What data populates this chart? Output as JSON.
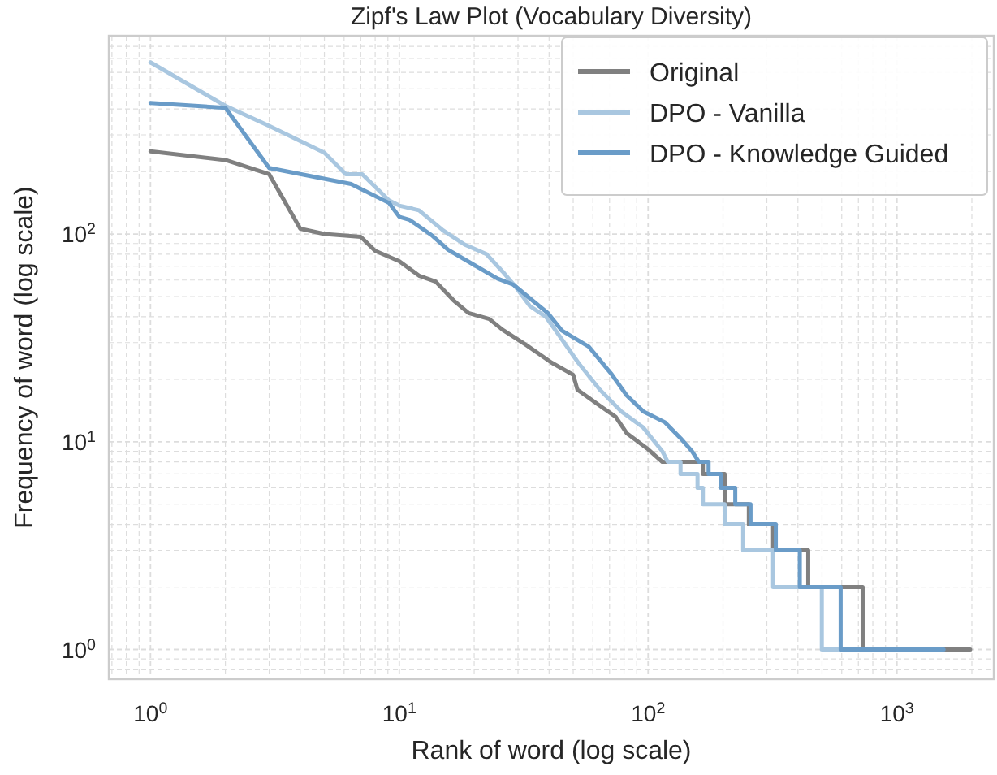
{
  "chart_data": {
    "type": "line",
    "title": "Zipf's Law Plot (Vocabulary Diversity)",
    "xlabel": "Rank of word (log scale)",
    "ylabel": "Frequency of word (log scale)",
    "log": "xy",
    "grid": true,
    "legend": "top right",
    "marker": "none",
    "line_style": "solid",
    "xlim": [
      0.68,
      2450
    ],
    "ylim": [
      0.72,
      900
    ],
    "xticks": [
      {
        "value": 0.7,
        "label": null
      },
      {
        "value": 0.8,
        "label": null
      },
      {
        "value": 0.9,
        "label": null
      },
      {
        "value": 1,
        "label": "10$^{0}$"
      },
      {
        "value": 2,
        "label": null
      },
      {
        "value": 3,
        "label": null
      },
      {
        "value": 4,
        "label": null
      },
      {
        "value": 5,
        "label": null
      },
      {
        "value": 6,
        "label": null
      },
      {
        "value": 7,
        "label": null
      },
      {
        "value": 8,
        "label": null
      },
      {
        "value": 9,
        "label": null
      },
      {
        "value": 10,
        "label": "10$^{1}$"
      },
      {
        "value": 20,
        "label": null
      },
      {
        "value": 30,
        "label": null
      },
      {
        "value": 40,
        "label": null
      },
      {
        "value": 50,
        "label": null
      },
      {
        "value": 60,
        "label": null
      },
      {
        "value": 70,
        "label": null
      },
      {
        "value": 80,
        "label": null
      },
      {
        "value": 90,
        "label": null
      },
      {
        "value": 100,
        "label": "10$^{2}$"
      },
      {
        "value": 200,
        "label": null
      },
      {
        "value": 300,
        "label": null
      },
      {
        "value": 400,
        "label": null
      },
      {
        "value": 500,
        "label": null
      },
      {
        "value": 600,
        "label": null
      },
      {
        "value": 700,
        "label": null
      },
      {
        "value": 800,
        "label": null
      },
      {
        "value": 900,
        "label": null
      },
      {
        "value": 1000,
        "label": "10$^{3}$"
      },
      {
        "value": 2000,
        "label": null
      }
    ],
    "yticks": [
      {
        "value": 0.8,
        "label": null
      },
      {
        "value": 0.9,
        "label": null
      },
      {
        "value": 1,
        "label": "10$^{0}$"
      },
      {
        "value": 2,
        "label": null
      },
      {
        "value": 3,
        "label": null
      },
      {
        "value": 4,
        "label": null
      },
      {
        "value": 5,
        "label": null
      },
      {
        "value": 6,
        "label": null
      },
      {
        "value": 7,
        "label": null
      },
      {
        "value": 8,
        "label": null
      },
      {
        "value": 9,
        "label": null
      },
      {
        "value": 10,
        "label": "10$^{1}$"
      },
      {
        "value": 20,
        "label": null
      },
      {
        "value": 30,
        "label": null
      },
      {
        "value": 40,
        "label": null
      },
      {
        "value": 50,
        "label": null
      },
      {
        "value": 60,
        "label": null
      },
      {
        "value": 70,
        "label": null
      },
      {
        "value": 80,
        "label": null
      },
      {
        "value": 90,
        "label": null
      },
      {
        "value": 100,
        "label": "10$^{2}$"
      },
      {
        "value": 200,
        "label": null
      },
      {
        "value": 300,
        "label": null
      },
      {
        "value": 400,
        "label": null
      },
      {
        "value": 500,
        "label": null
      },
      {
        "value": 600,
        "label": null
      },
      {
        "value": 700,
        "label": null
      },
      {
        "value": 800,
        "label": null
      }
    ],
    "series": [
      {
        "name": "Original",
        "color": "#808080",
        "x": [
          1,
          2,
          3,
          4,
          5,
          7,
          8,
          10,
          12,
          14,
          16.5,
          19,
          23,
          26,
          32,
          41,
          50,
          52,
          64,
          74,
          82,
          100,
          114,
          166,
          166,
          203,
          203,
          254,
          254,
          318,
          318,
          440,
          440,
          728,
          728,
          1970
        ],
        "values": [
          250,
          227,
          194,
          106,
          100,
          97,
          83,
          74,
          63,
          59,
          48,
          41.6,
          39,
          34.6,
          29.5,
          24,
          21,
          17.8,
          14.9,
          13.2,
          11,
          9.2,
          8,
          8,
          7,
          7,
          5,
          5,
          4,
          4,
          3,
          3,
          2,
          2,
          1,
          1
        ]
      },
      {
        "name": "DPO - Vanilla",
        "color": "#a9c7e0",
        "x": [
          1,
          2,
          3,
          5,
          6.1,
          7.1,
          9.1,
          10,
          12,
          15,
          18.3,
          22.4,
          26,
          29.4,
          33.5,
          38.8,
          41,
          52.4,
          64,
          78,
          95.6,
          114,
          120,
          135,
          135,
          158,
          158,
          166,
          166,
          203,
          203,
          241,
          241,
          318,
          318,
          499,
          499,
          580
        ],
        "values": [
          670,
          414,
          331,
          246,
          194,
          194,
          145,
          137,
          130,
          104,
          89,
          80,
          66,
          55.5,
          45,
          40,
          36.5,
          24,
          17.8,
          14,
          11.7,
          9,
          8,
          8,
          7,
          7,
          6,
          6,
          5,
          5,
          4,
          4,
          3,
          3,
          2,
          2,
          1,
          1
        ]
      },
      {
        "name": "DPO - Knowledge Guided",
        "color": "#6a9cc8",
        "x": [
          1,
          2,
          3,
          6.4,
          9.1,
          10,
          11,
          13.6,
          15.7,
          19.2,
          24.8,
          28.8,
          33.5,
          39.6,
          45,
          57.7,
          71,
          82,
          95.6,
          117,
          135,
          150,
          160,
          175,
          175,
          196,
          196,
          224,
          224,
          258,
          258,
          326,
          326,
          407,
          407,
          594,
          594,
          1540
        ],
        "values": [
          427,
          405,
          208,
          174,
          141,
          121,
          117,
          98,
          84,
          73,
          61,
          57,
          49,
          41.6,
          34.3,
          28.7,
          21.3,
          16.7,
          14,
          12.4,
          10.4,
          9,
          8,
          8,
          7,
          7,
          6,
          6,
          5,
          5,
          4,
          4,
          3,
          3,
          2,
          2,
          1,
          1
        ]
      }
    ]
  }
}
